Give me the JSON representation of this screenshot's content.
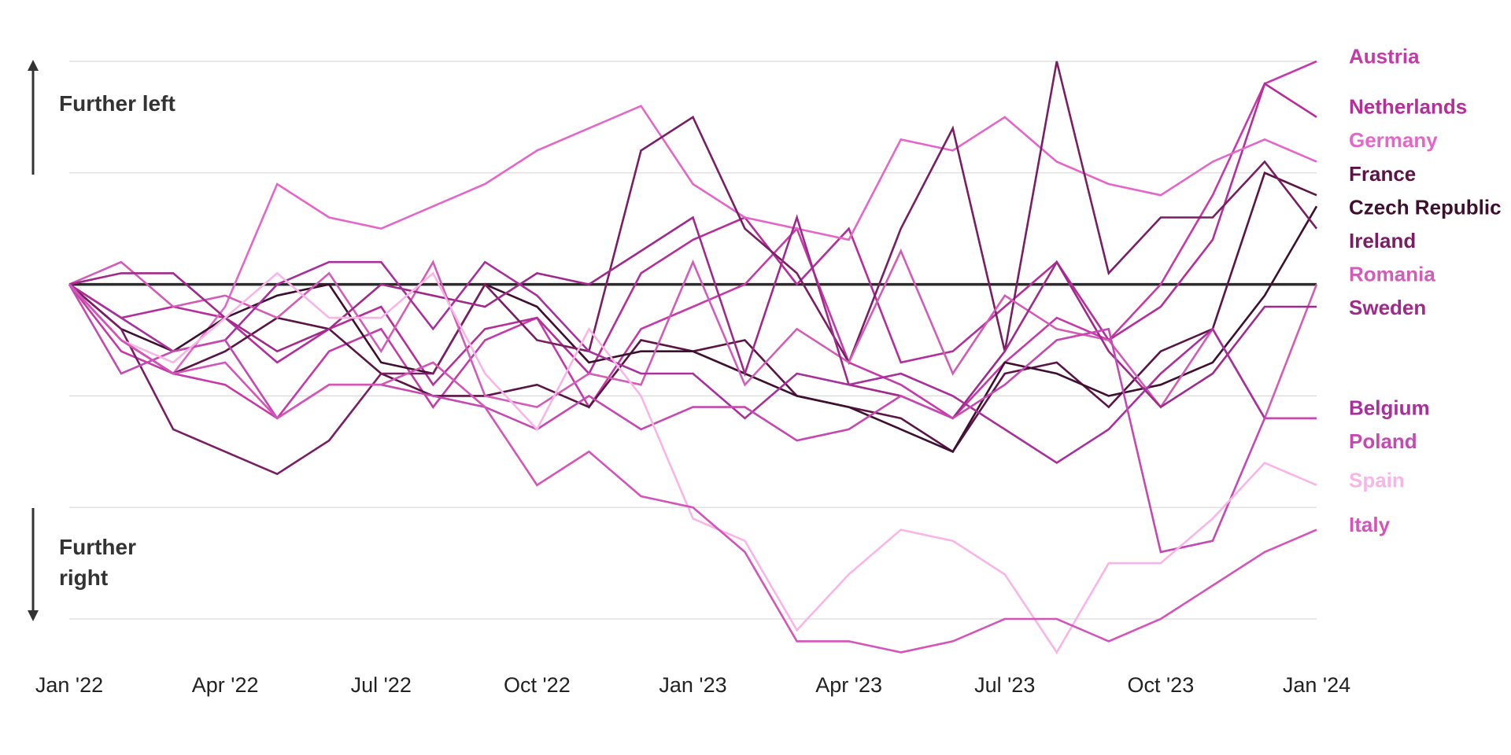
{
  "annotations": {
    "up_label": "Further left",
    "down_label_line1": "Further",
    "down_label_line2": "right"
  },
  "chart_data": {
    "type": "line",
    "title": "",
    "xlabel": "",
    "ylabel": "",
    "x": [
      "2022-01",
      "2022-02",
      "2022-03",
      "2022-04",
      "2022-05",
      "2022-06",
      "2022-07",
      "2022-08",
      "2022-09",
      "2022-10",
      "2022-11",
      "2022-12",
      "2023-01",
      "2023-02",
      "2023-03",
      "2023-04",
      "2023-05",
      "2023-06",
      "2023-07",
      "2023-08",
      "2023-09",
      "2023-10",
      "2023-11",
      "2023-12",
      "2024-01"
    ],
    "x_ticks": [
      {
        "x": "2022-01",
        "label": "Jan '22"
      },
      {
        "x": "2022-04",
        "label": "Apr '22"
      },
      {
        "x": "2022-07",
        "label": "Jul '22"
      },
      {
        "x": "2022-10",
        "label": "Oct '22"
      },
      {
        "x": "2023-01",
        "label": "Jan '23"
      },
      {
        "x": "2023-04",
        "label": "Apr '23"
      },
      {
        "x": "2023-07",
        "label": "Jul '23"
      },
      {
        "x": "2023-10",
        "label": "Oct '23"
      },
      {
        "x": "2024-01",
        "label": "Jan '24"
      }
    ],
    "ylim": [
      -3,
      2
    ],
    "y_gridlines": [
      -3,
      -2,
      -1,
      0,
      1,
      2
    ],
    "y_tick_labels": false,
    "baseline": 0,
    "grid": true,
    "legend": "right, direct labels",
    "series": [
      {
        "name": "Austria",
        "color": "#c63aa8",
        "values": [
          0,
          -0.6,
          -0.8,
          -0.9,
          -1.2,
          -0.6,
          -0.4,
          -1.1,
          -0.5,
          -0.3,
          -1.1,
          -0.4,
          -0.2,
          0,
          0.5,
          -0.7,
          -0.9,
          -1.2,
          -0.7,
          -0.3,
          -0.5,
          0,
          0.8,
          1.8,
          2.0
        ]
      },
      {
        "name": "Netherlands",
        "color": "#b52e9a",
        "values": [
          0,
          -0.3,
          -0.2,
          -0.3,
          -0.7,
          -0.4,
          -0.2,
          -0.9,
          -0.4,
          -0.3,
          -0.8,
          0.1,
          0.4,
          0.6,
          0,
          0.5,
          -0.7,
          -0.6,
          -0.2,
          0.2,
          -0.5,
          -0.2,
          0.4,
          1.8,
          1.5
        ]
      },
      {
        "name": "Germany",
        "color": "#e467c8",
        "values": [
          0,
          -0.5,
          -0.8,
          -0.2,
          0.9,
          0.6,
          0.5,
          0.7,
          0.9,
          1.2,
          1.4,
          1.6,
          0.9,
          0.6,
          0.5,
          0.4,
          1.3,
          1.2,
          1.5,
          1.1,
          0.9,
          0.8,
          1.1,
          1.3,
          1.1
        ]
      },
      {
        "name": "France",
        "color": "#5a1545",
        "values": [
          0,
          -0.5,
          -0.8,
          -0.6,
          -0.3,
          -0.4,
          -0.8,
          -1.0,
          -1.0,
          -0.9,
          -1.1,
          -0.5,
          -0.6,
          -0.5,
          -1.0,
          -1.1,
          -1.2,
          -1.5,
          -0.8,
          -0.7,
          -1.1,
          -0.6,
          -0.4,
          1.0,
          0.8
        ]
      },
      {
        "name": "Czech Republic",
        "color": "#3d1030",
        "values": [
          0,
          -0.4,
          -0.6,
          -0.3,
          -0.1,
          0,
          -0.7,
          -0.8,
          0,
          -0.2,
          -0.7,
          -0.6,
          -0.6,
          -0.8,
          -1.0,
          -1.1,
          -1.3,
          -1.5,
          -0.7,
          -0.8,
          -1.0,
          -0.9,
          -0.7,
          -0.1,
          0.7
        ]
      },
      {
        "name": "Ireland",
        "color": "#7a1e63",
        "values": [
          0,
          -0.4,
          -1.3,
          -1.5,
          -1.7,
          -1.4,
          -0.8,
          -0.8,
          0,
          -0.5,
          -0.6,
          1.2,
          1.5,
          0.5,
          0.1,
          -0.7,
          0.5,
          1.4,
          -0.6,
          2.0,
          0.1,
          0.6,
          0.6,
          1.1,
          0.5
        ]
      },
      {
        "name": "Romania",
        "color": "#d35cb6",
        "values": [
          0,
          0.2,
          -0.2,
          -0.1,
          -0.3,
          0.1,
          -0.6,
          0.2,
          -1.0,
          -1.1,
          -0.8,
          -0.9,
          0.2,
          -0.9,
          -0.4,
          -0.7,
          0.3,
          -0.8,
          -0.1,
          -0.4,
          -0.5,
          -1.1,
          -0.4,
          -1.2,
          0
        ]
      },
      {
        "name": "Sweden",
        "color": "#a02a8a",
        "values": [
          0,
          0.1,
          0.1,
          -0.3,
          -0.6,
          -0.4,
          0,
          -0.1,
          -0.2,
          0.1,
          0,
          0.3,
          0.6,
          -0.8,
          0.6,
          -0.9,
          -1.0,
          -1.2,
          -0.6,
          0.2,
          -0.6,
          -1.1,
          -0.8,
          -0.2,
          -0.2
        ]
      },
      {
        "name": "Belgium",
        "color": "#a8309a",
        "values": [
          0,
          -0.3,
          -0.6,
          -0.5,
          0,
          0.2,
          0.2,
          -0.4,
          0.2,
          -0.1,
          -0.6,
          -0.8,
          -0.8,
          -1.2,
          -0.8,
          -0.9,
          -0.8,
          -1.0,
          -1.3,
          -1.6,
          -1.3,
          -0.8,
          -0.4,
          -1.2,
          -1.2
        ]
      },
      {
        "name": "Poland",
        "color": "#c449b0",
        "values": [
          0,
          -0.8,
          -0.6,
          -0.5,
          -1.2,
          -0.9,
          -0.9,
          -1.0,
          -1.1,
          -1.3,
          -1.0,
          -1.3,
          -1.1,
          -1.1,
          -1.4,
          -1.3,
          -1.0,
          -1.2,
          -0.9,
          -0.5,
          -0.4,
          -2.4,
          -2.3,
          -1.2,
          -1.2
        ]
      },
      {
        "name": "Spain",
        "color": "#f8b5e6",
        "values": [
          0,
          -0.5,
          -0.7,
          -0.3,
          0.1,
          -0.3,
          -0.3,
          0.1,
          -0.8,
          -1.3,
          -0.4,
          -1.0,
          -2.1,
          -2.3,
          -3.1,
          -2.6,
          -2.2,
          -2.3,
          -2.6,
          -3.3,
          -2.5,
          -2.5,
          -2.1,
          -1.6,
          -1.8
        ]
      },
      {
        "name": "Italy",
        "color": "#d454b8",
        "values": [
          0,
          -0.5,
          -0.8,
          -0.7,
          -1.2,
          -0.9,
          -0.9,
          -0.7,
          -1.1,
          -1.8,
          -1.5,
          -1.9,
          -2.0,
          -2.4,
          -3.2,
          -3.2,
          -3.3,
          -3.2,
          -3.0,
          -3.0,
          -3.2,
          -3.0,
          -2.7,
          -2.4,
          -2.2
        ]
      }
    ]
  }
}
